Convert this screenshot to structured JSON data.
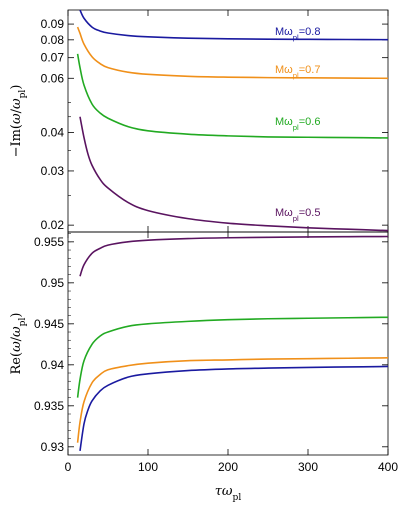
{
  "chart_data": [
    {
      "type": "line",
      "panel": "top",
      "ylabel_html": "−Im(ω/ω<sub>pl</sub>)",
      "ylabel_parts": [
        "−Im(",
        "ω",
        "/",
        "ω",
        "pl",
        ")"
      ],
      "yscale": "log",
      "ylim": [
        0.019,
        0.1
      ],
      "xlim": [
        0,
        400
      ],
      "yticks": [
        0.02,
        0.03,
        0.04,
        0.06,
        0.07,
        0.08,
        0.09
      ],
      "ytick_labels": [
        "0.02",
        "0.03",
        "0.04",
        "0.06",
        "0.07",
        "0.08",
        "0.09"
      ],
      "grid": false,
      "series": [
        {
          "name": "Mωpl=0.8",
          "label_parts": [
            "M",
            "ω",
            "pl",
            "=0.8"
          ],
          "color": "#1a1aa0",
          "x": [
            15,
            20,
            30,
            40,
            50,
            75,
            100,
            150,
            200,
            250,
            300,
            350,
            400
          ],
          "y": [
            0.1,
            0.094,
            0.088,
            0.0855,
            0.0842,
            0.0826,
            0.0818,
            0.081,
            0.0806,
            0.0804,
            0.0803,
            0.0802,
            0.0801
          ]
        },
        {
          "name": "Mωpl=0.7",
          "label_parts": [
            "M",
            "ω",
            "pl",
            "=0.7"
          ],
          "color": "#f0901a",
          "x": [
            12,
            15,
            20,
            30,
            40,
            50,
            75,
            100,
            150,
            200,
            250,
            300,
            350,
            400
          ],
          "y": [
            0.088,
            0.084,
            0.0775,
            0.0705,
            0.067,
            0.065,
            0.0628,
            0.0618,
            0.0609,
            0.0605,
            0.0603,
            0.0602,
            0.0601,
            0.06
          ]
        },
        {
          "name": "Mωpl=0.6",
          "label_parts": [
            "M",
            "ω",
            "pl",
            "=0.6"
          ],
          "color": "#22aa22",
          "x": [
            12,
            15,
            20,
            30,
            40,
            50,
            75,
            100,
            150,
            200,
            250,
            300,
            350,
            400
          ],
          "y": [
            0.072,
            0.065,
            0.057,
            0.0495,
            0.0463,
            0.0445,
            0.0418,
            0.0405,
            0.0395,
            0.039,
            0.0387,
            0.0386,
            0.0385,
            0.0384
          ]
        },
        {
          "name": "Mωpl=0.5",
          "label_parts": [
            "M",
            "ω",
            "pl",
            "=0.5"
          ],
          "color": "#5a1460",
          "x": [
            15,
            20,
            25,
            30,
            40,
            50,
            75,
            100,
            150,
            200,
            250,
            300,
            350,
            400
          ],
          "y": [
            0.045,
            0.0385,
            0.034,
            0.0313,
            0.0282,
            0.0264,
            0.0237,
            0.0223,
            0.021,
            0.0203,
            0.0199,
            0.0196,
            0.0194,
            0.0192
          ]
        }
      ]
    },
    {
      "type": "line",
      "panel": "bottom",
      "ylabel_parts": [
        "Re(",
        "ω",
        "/",
        "ω",
        "pl",
        ")"
      ],
      "xlabel_parts": [
        "τ",
        "ω",
        "pl"
      ],
      "ylim": [
        0.929,
        0.9562
      ],
      "xlim": [
        0,
        400
      ],
      "yticks": [
        0.93,
        0.935,
        0.94,
        0.945,
        0.95,
        0.955
      ],
      "ytick_labels": [
        "0.93",
        "0.935",
        "0.94",
        "0.945",
        "0.95",
        "0.955"
      ],
      "xticks": [
        0,
        100,
        200,
        300,
        400
      ],
      "xtick_labels": [
        "0",
        "100",
        "200",
        "300",
        "400"
      ],
      "grid": false,
      "series": [
        {
          "color": "#5a1460",
          "x": [
            15,
            20,
            30,
            40,
            50,
            75,
            100,
            150,
            200,
            250,
            300,
            350,
            400
          ],
          "y": [
            0.9508,
            0.9522,
            0.9536,
            0.9542,
            0.9546,
            0.955,
            0.9552,
            0.9554,
            0.9555,
            0.95555,
            0.9556,
            0.95563,
            0.95565
          ]
        },
        {
          "color": "#22aa22",
          "x": [
            12,
            15,
            20,
            30,
            40,
            50,
            75,
            100,
            150,
            200,
            250,
            300,
            350,
            400
          ],
          "y": [
            0.936,
            0.9382,
            0.9405,
            0.9425,
            0.9435,
            0.944,
            0.9447,
            0.945,
            0.9453,
            0.9455,
            0.94562,
            0.94568,
            0.94574,
            0.9458
          ]
        },
        {
          "color": "#f0901a",
          "x": [
            12,
            15,
            20,
            30,
            40,
            50,
            75,
            100,
            150,
            200,
            250,
            300,
            350,
            400
          ],
          "y": [
            0.9305,
            0.933,
            0.9355,
            0.9378,
            0.9388,
            0.9394,
            0.9399,
            0.9402,
            0.9405,
            0.9406,
            0.9407,
            0.94075,
            0.9408,
            0.94085
          ]
        },
        {
          "color": "#1a1aa0",
          "x": [
            15,
            20,
            25,
            30,
            40,
            50,
            75,
            100,
            150,
            200,
            250,
            300,
            350,
            400
          ],
          "y": [
            0.9295,
            0.9328,
            0.9345,
            0.9356,
            0.9368,
            0.9375,
            0.9385,
            0.9389,
            0.9393,
            0.9395,
            0.9396,
            0.93968,
            0.93974,
            0.9398
          ]
        }
      ]
    }
  ]
}
